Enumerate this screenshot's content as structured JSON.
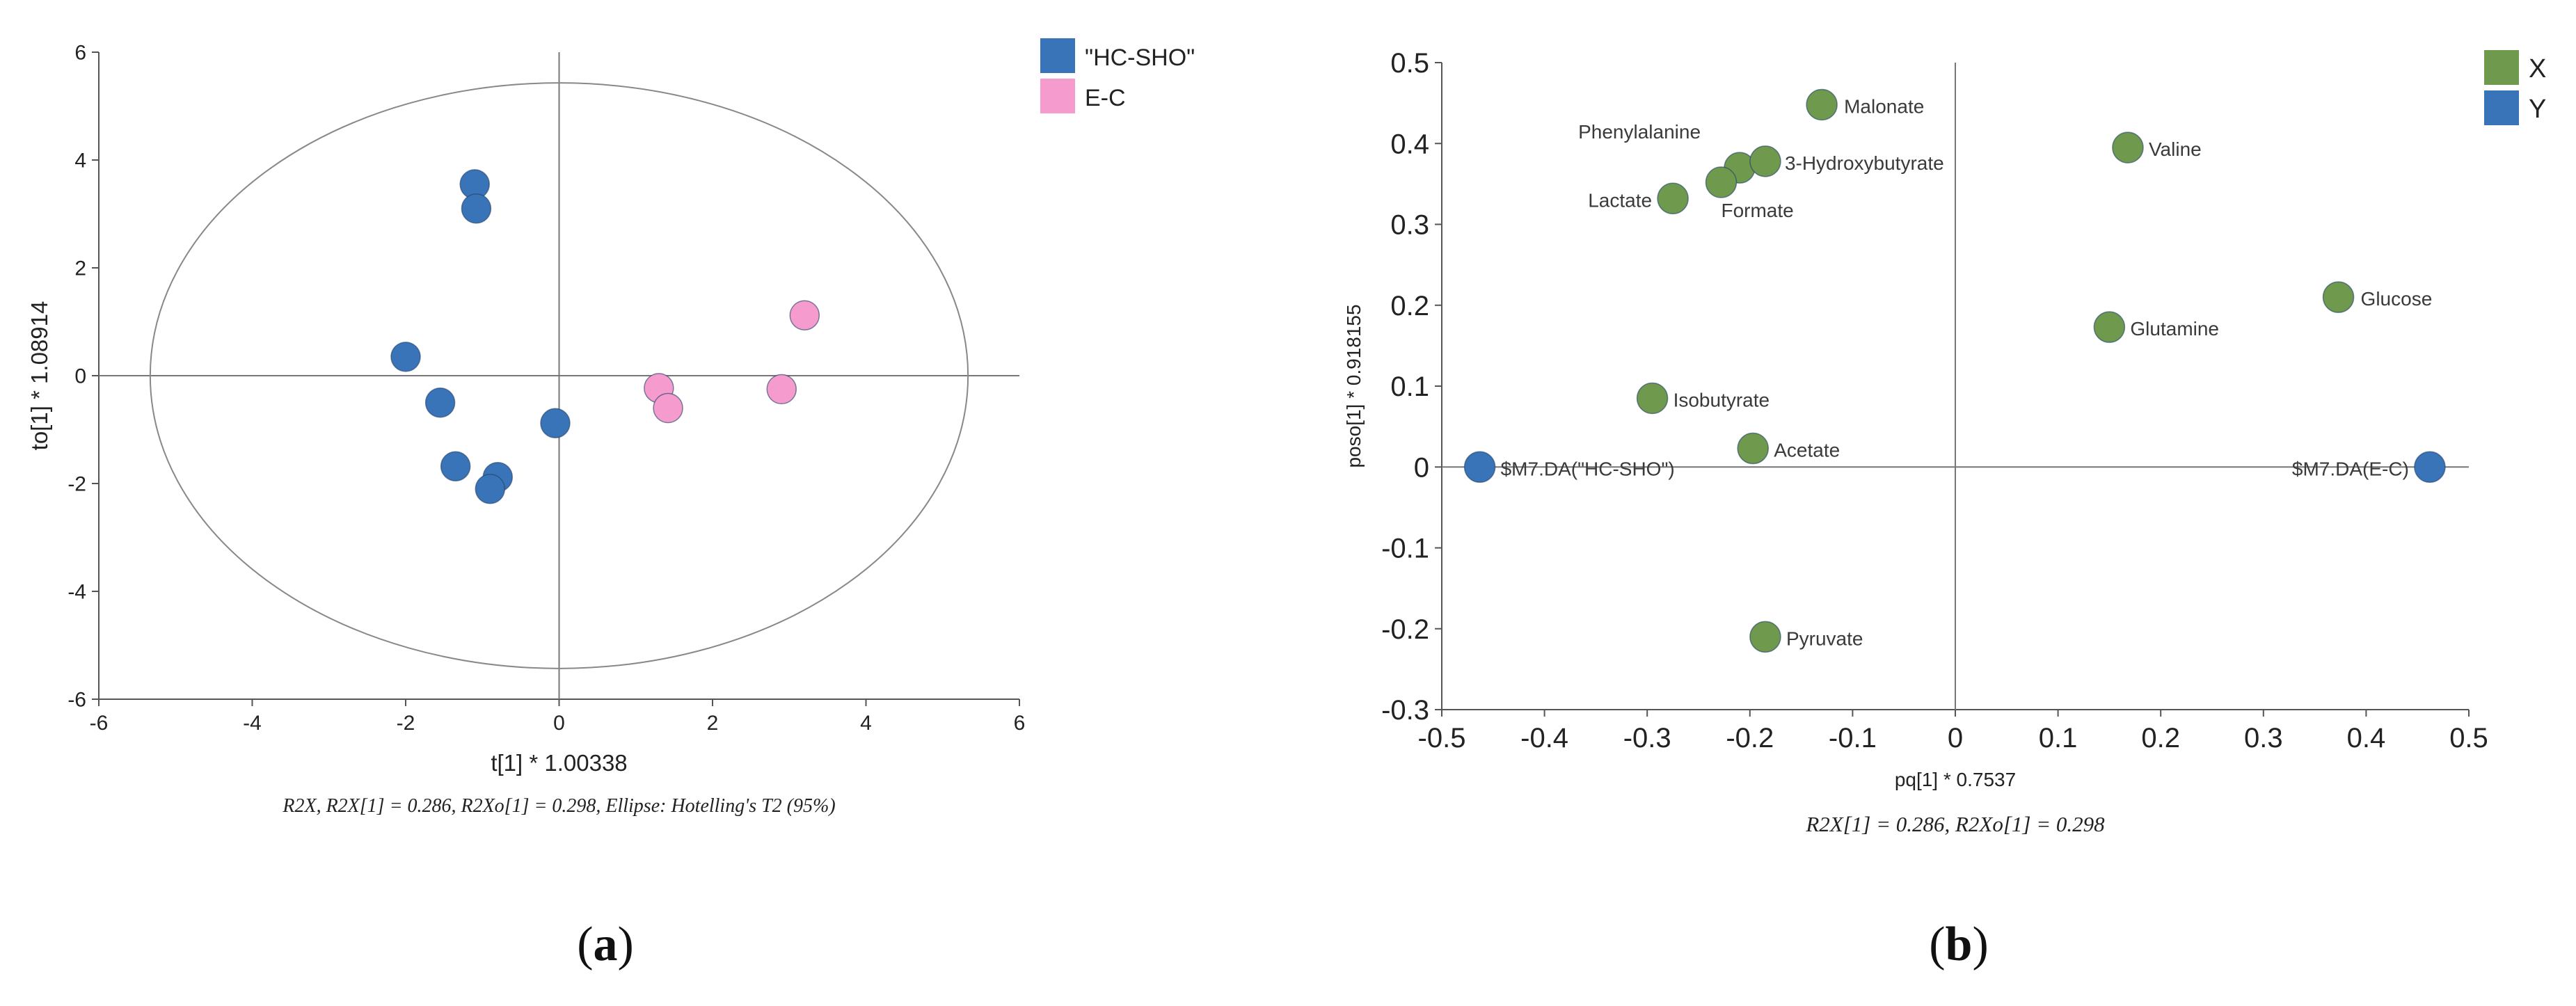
{
  "chart_data": [
    {
      "type": "scatter",
      "panel": "a",
      "title": "",
      "xlabel": "t[1] * 1.00338",
      "ylabel": "to[1] * 1.08914",
      "xlim": [
        -6,
        6
      ],
      "ylim": [
        -6,
        6
      ],
      "xticks": [
        "-6",
        "-4",
        "-2",
        "0",
        "2",
        "4",
        "6"
      ],
      "yticks": [
        "6",
        "4",
        "2",
        "0",
        "-2",
        "-4",
        "-6"
      ],
      "caption": "R2X, R2X[1] = 0.286, R2Xo[1] = 0.298, Ellipse: Hotelling's T2 (95%)",
      "panel_label": "a",
      "ellipse": {
        "rx": 5.33,
        "ry": 5.43,
        "label": "Hotelling's T2 (95%)"
      },
      "legend": {
        "position": "top-right"
      },
      "series": [
        {
          "name": "\"HC-SHO\"",
          "color": "#3a74b8",
          "points": [
            {
              "x": -1.1,
              "y": 3.55
            },
            {
              "x": -1.08,
              "y": 3.1
            },
            {
              "x": -2.0,
              "y": 0.35
            },
            {
              "x": -1.55,
              "y": -0.5
            },
            {
              "x": -0.05,
              "y": -0.88
            },
            {
              "x": -1.35,
              "y": -1.68
            },
            {
              "x": -0.8,
              "y": -1.88
            },
            {
              "x": -0.9,
              "y": -2.1
            }
          ]
        },
        {
          "name": "E-C",
          "color": "#f59bce",
          "points": [
            {
              "x": 3.2,
              "y": 1.12
            },
            {
              "x": 1.3,
              "y": -0.23
            },
            {
              "x": 1.42,
              "y": -0.6
            },
            {
              "x": 2.9,
              "y": -0.25
            }
          ]
        }
      ]
    },
    {
      "type": "scatter",
      "panel": "b",
      "title": "",
      "xlabel": "pq[1] * 0.7537",
      "ylabel": "poso[1] * 0.918155",
      "xlim": [
        -0.5,
        0.5
      ],
      "ylim": [
        -0.3,
        0.5
      ],
      "xticks": [
        "-0.5",
        "-0.4",
        "-0.3",
        "-0.2",
        "-0.1",
        "0",
        "0.1",
        "0.2",
        "0.3",
        "0.4",
        "0.5"
      ],
      "yticks": [
        "0.5",
        "0.4",
        "0.3",
        "0.2",
        "0.1",
        "0",
        "-0.1",
        "-0.2",
        "-0.3"
      ],
      "caption": "R2X[1] = 0.286, R2Xo[1] = 0.298",
      "panel_label": "b",
      "legend": {
        "position": "top-right"
      },
      "series": [
        {
          "name": "X",
          "color": "#6f9a4e",
          "points": [
            {
              "x": -0.13,
              "y": 0.448,
              "label": "Malonate"
            },
            {
              "x": -0.21,
              "y": 0.37,
              "label": "Phenylalanine"
            },
            {
              "x": -0.185,
              "y": 0.378,
              "label": "3-Hydroxybutyrate"
            },
            {
              "x": -0.228,
              "y": 0.352,
              "label": "Formate"
            },
            {
              "x": -0.275,
              "y": 0.332,
              "label": "Lactate"
            },
            {
              "x": 0.168,
              "y": 0.395,
              "label": "Valine"
            },
            {
              "x": 0.373,
              "y": 0.21,
              "label": "Glucose"
            },
            {
              "x": 0.15,
              "y": 0.173,
              "label": "Glutamine"
            },
            {
              "x": -0.295,
              "y": 0.085,
              "label": "Isobutyrate"
            },
            {
              "x": -0.197,
              "y": 0.023,
              "label": "Acetate"
            },
            {
              "x": -0.185,
              "y": -0.21,
              "label": "Pyruvate"
            }
          ]
        },
        {
          "name": "Y",
          "color": "#3a74b8",
          "points": [
            {
              "x": -0.463,
              "y": 0.0,
              "label": "$M7.DA(\"HC-SHO\")"
            },
            {
              "x": 0.462,
              "y": 0.0,
              "label": "$M7.DA(E-C)"
            }
          ]
        }
      ]
    }
  ]
}
